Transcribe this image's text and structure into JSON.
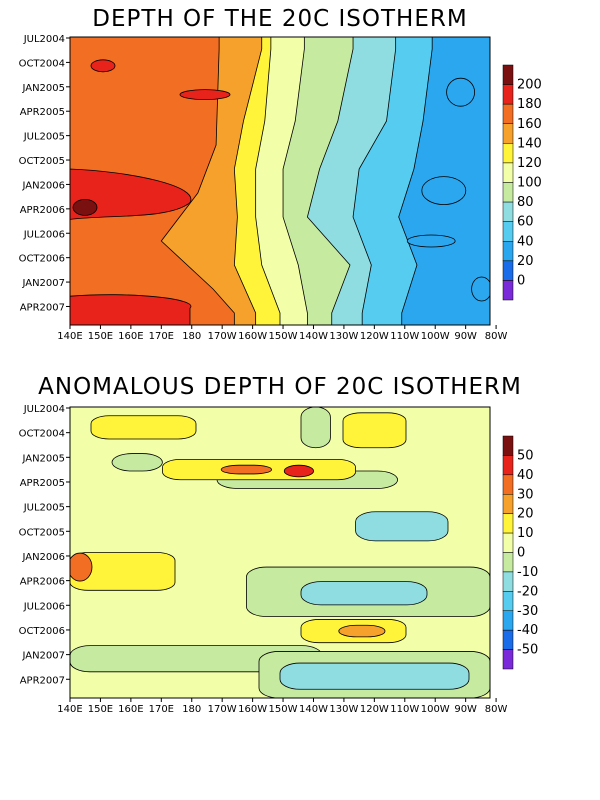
{
  "chart_data": [
    {
      "type": "heatmap",
      "title": "DEPTH OF THE 20C ISOTHERM",
      "x_ticks": [
        "140E",
        "150E",
        "160E",
        "170E",
        "180",
        "170W",
        "160W",
        "150W",
        "140W",
        "130W",
        "120W",
        "110W",
        "100W",
        "90W",
        "80W"
      ],
      "y_ticks": [
        "JUL2004",
        "OCT2004",
        "JAN2005",
        "APR2005",
        "JUL2005",
        "OCT2005",
        "JAN2006",
        "APR2006",
        "JUL2006",
        "OCT2006",
        "JAN2007",
        "APR2007"
      ],
      "colorbar": {
        "labels": [
          "200",
          "180",
          "160",
          "140",
          "120",
          "100",
          "80",
          "60",
          "40",
          "20",
          "0"
        ],
        "levels": [
          200,
          180,
          160,
          140,
          120,
          100,
          80,
          60,
          40,
          20,
          0
        ],
        "colors": [
          "#7b1010",
          "#e8231b",
          "#f26e22",
          "#f6a12c",
          "#fff43a",
          "#f2ffa8",
          "#c6eaa0",
          "#8fdde0",
          "#55ccf0",
          "#2ba7f0",
          "#1a6ce8",
          "#7a2ad8"
        ]
      },
      "isotherm_boundaries": [
        {
          "level": 160,
          "rows": [
            [
              0,
              "171W"
            ],
            [
              4,
              "172W"
            ],
            [
              6,
              "178W"
            ],
            [
              8,
              "170E"
            ],
            [
              10,
              "173W"
            ],
            [
              11,
              "166W"
            ]
          ]
        },
        {
          "level": 140,
          "rows": [
            [
              0,
              "157W"
            ],
            [
              3,
              "163W"
            ],
            [
              5,
              "166W"
            ],
            [
              7,
              "165W"
            ],
            [
              9,
              "166W"
            ],
            [
              11,
              "159W"
            ]
          ]
        },
        {
          "level": 120,
          "rows": [
            [
              0,
              "154W"
            ],
            [
              3,
              "156W"
            ],
            [
              5,
              "159W"
            ],
            [
              7,
              "159W"
            ],
            [
              9,
              "157W"
            ],
            [
              11,
              "151W"
            ]
          ]
        },
        {
          "level": 100,
          "rows": [
            [
              0,
              "143W"
            ],
            [
              3,
              "146W"
            ],
            [
              5,
              "150W"
            ],
            [
              7,
              "150W"
            ],
            [
              9,
              "145W"
            ],
            [
              11,
              "142W"
            ]
          ]
        },
        {
          "level": 80,
          "rows": [
            [
              0,
              "127W"
            ],
            [
              3,
              "132W"
            ],
            [
              5,
              "138W"
            ],
            [
              7,
              "142W"
            ],
            [
              9,
              "128W"
            ],
            [
              11,
              "134W"
            ]
          ]
        },
        {
          "level": 60,
          "rows": [
            [
              0,
              "113W"
            ],
            [
              3,
              "116W"
            ],
            [
              5,
              "125W"
            ],
            [
              7,
              "127W"
            ],
            [
              9,
              "121W"
            ],
            [
              11,
              "124W"
            ]
          ]
        },
        {
          "level": 40,
          "rows": [
            [
              0,
              "101W"
            ],
            [
              3,
              "104W"
            ],
            [
              5,
              "107W"
            ],
            [
              7,
              "112W"
            ],
            [
              9,
              "106W"
            ],
            [
              11,
              "111W"
            ]
          ]
        }
      ]
    },
    {
      "type": "heatmap",
      "title": "ANOMALOUS DEPTH OF 20C ISOTHERM",
      "x_ticks": [
        "140E",
        "150E",
        "160E",
        "170E",
        "180",
        "170W",
        "160W",
        "150W",
        "140W",
        "130W",
        "120W",
        "110W",
        "100W",
        "90W",
        "80W"
      ],
      "y_ticks": [
        "JUL2004",
        "OCT2004",
        "JAN2005",
        "APR2005",
        "JUL2005",
        "OCT2005",
        "JAN2006",
        "APR2006",
        "JUL2006",
        "OCT2006",
        "JAN2007",
        "APR2007"
      ],
      "colorbar": {
        "labels": [
          "50",
          "40",
          "30",
          "20",
          "10",
          "0",
          "-10",
          "-20",
          "-30",
          "-40",
          "-50"
        ],
        "levels": [
          50,
          40,
          30,
          20,
          10,
          0,
          -10,
          -20,
          -30,
          -40,
          -50
        ],
        "colors": [
          "#7b1010",
          "#e8231b",
          "#f26e22",
          "#f6a12c",
          "#fff43a",
          "#f2ffa8",
          "#c6eaa0",
          "#8fdde0",
          "#55ccf0",
          "#2ba7f0",
          "#1a6ce8",
          "#7a2ad8"
        ]
      }
    }
  ]
}
